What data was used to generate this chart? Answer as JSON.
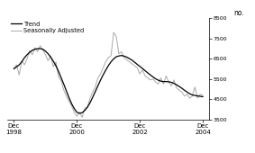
{
  "ylabel_right": "no.",
  "ylim": [
    3500,
    8500
  ],
  "yticks": [
    3500,
    4500,
    5500,
    6500,
    7500,
    8500
  ],
  "xtick_labels": [
    "Dec\n1998",
    "Dec\n2000",
    "Dec\n2002",
    "Dec\n2004"
  ],
  "trend_color": "#000000",
  "seasonal_color": "#aaaaaa",
  "trend_linewidth": 0.9,
  "seasonal_linewidth": 0.7,
  "legend_labels": [
    "Trend",
    "Seasonally Adjusted"
  ],
  "background_color": "#ffffff",
  "trend_y": [
    6000,
    6100,
    6200,
    6350,
    6550,
    6700,
    6820,
    6920,
    6970,
    7000,
    7000,
    6970,
    6880,
    6750,
    6580,
    6380,
    6150,
    5870,
    5560,
    5240,
    4900,
    4570,
    4270,
    4030,
    3850,
    3800,
    3830,
    3940,
    4100,
    4320,
    4590,
    4870,
    5160,
    5440,
    5700,
    5940,
    6160,
    6350,
    6490,
    6600,
    6640,
    6660,
    6630,
    6580,
    6510,
    6430,
    6330,
    6220,
    6120,
    6020,
    5910,
    5800,
    5700,
    5600,
    5510,
    5440,
    5390,
    5370,
    5370,
    5360,
    5330,
    5280,
    5210,
    5130,
    5040,
    4940,
    4850,
    4770,
    4710,
    4680,
    4660,
    4640,
    4620
  ],
  "seasonal_y": [
    6050,
    6200,
    5700,
    6400,
    6200,
    6500,
    6900,
    6700,
    7050,
    6850,
    7150,
    6950,
    6700,
    6400,
    6650,
    6100,
    6350,
    5600,
    5400,
    4950,
    4650,
    4400,
    4150,
    3850,
    3650,
    3850,
    3600,
    4050,
    4100,
    4550,
    4850,
    5100,
    5550,
    5750,
    6050,
    6350,
    6550,
    6650,
    7800,
    7600,
    6750,
    6850,
    6550,
    6450,
    6350,
    6250,
    6150,
    6050,
    5750,
    5950,
    5650,
    5550,
    5450,
    5500,
    5350,
    5250,
    5550,
    5250,
    5650,
    5350,
    5150,
    5450,
    5050,
    4950,
    4850,
    4650,
    4750,
    4550,
    4650,
    5100,
    4550,
    4750,
    4680
  ]
}
